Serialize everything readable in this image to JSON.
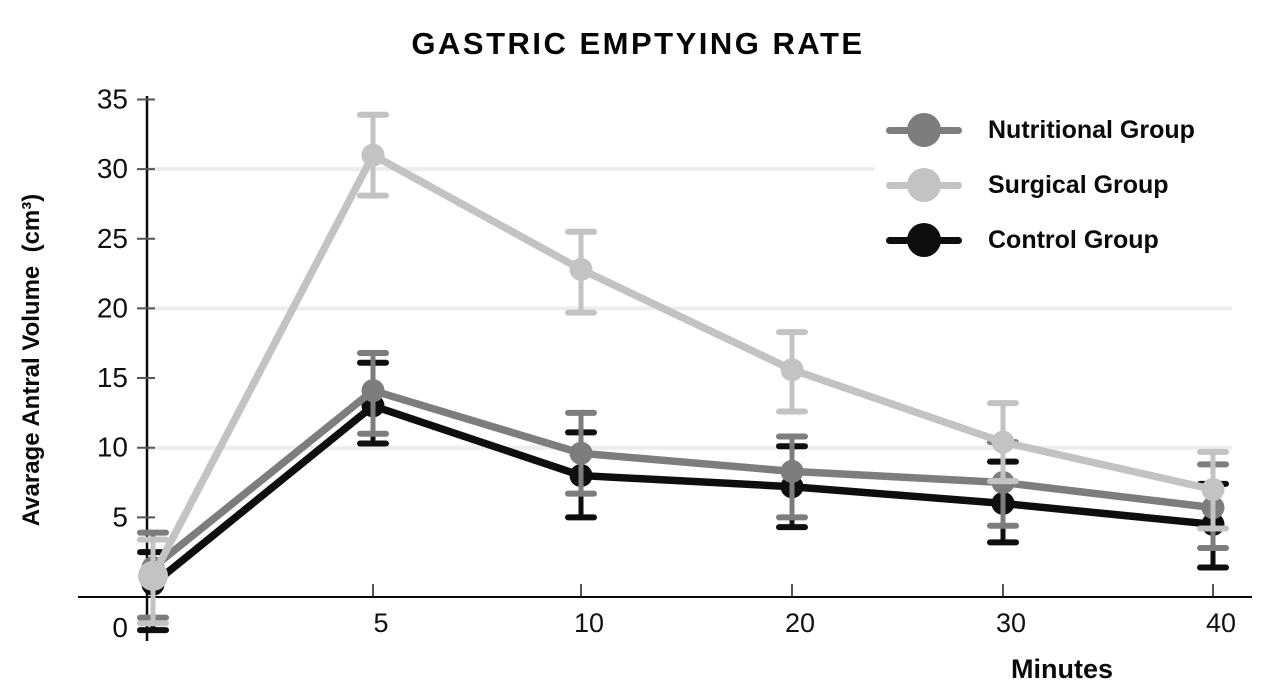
{
  "chart_data": {
    "type": "line",
    "title": "GASTRIC EMPTYING RATE",
    "xlabel": "Minutes",
    "ylabel": "Avarage Antral Volume  (cm³)",
    "x_categories": [
      "0",
      "5",
      "10",
      "20",
      "30",
      "40"
    ],
    "y_ticks": [
      0,
      5,
      10,
      15,
      20,
      25,
      30,
      35
    ],
    "ylim": [
      0,
      35
    ],
    "grid_values": [
      10,
      20,
      30
    ],
    "grid": "light horizontal gridlines at 10, 20, 30",
    "legend_position": "top-right",
    "error_bars": true,
    "series": [
      {
        "name": "Nutritional Group",
        "color": "#7d7d7d",
        "values": [
          1.4,
          14.1,
          9.6,
          8.3,
          7.5,
          5.7
        ],
        "err_high": [
          3.9,
          16.8,
          12.5,
          10.8,
          10.4,
          8.8
        ],
        "err_low": [
          -2.2,
          11.0,
          6.7,
          5.0,
          4.4,
          2.8
        ]
      },
      {
        "name": "Surgical Group",
        "color": "#c3c3c3",
        "values": [
          0.8,
          31.0,
          22.8,
          15.6,
          10.4,
          7.0
        ],
        "err_high": [
          3.4,
          33.9,
          25.5,
          18.3,
          13.2,
          9.7
        ],
        "err_low": [
          -2.6,
          28.1,
          19.7,
          12.6,
          7.6,
          4.2
        ]
      },
      {
        "name": "Control Group",
        "color": "#0e0e0e",
        "values": [
          0.2,
          13.0,
          8.0,
          7.2,
          6.0,
          4.5
        ],
        "err_high": [
          2.5,
          16.1,
          11.1,
          10.1,
          9.0,
          7.4
        ],
        "err_low": [
          -3.1,
          10.3,
          5.0,
          4.3,
          3.2,
          1.4
        ]
      }
    ]
  }
}
